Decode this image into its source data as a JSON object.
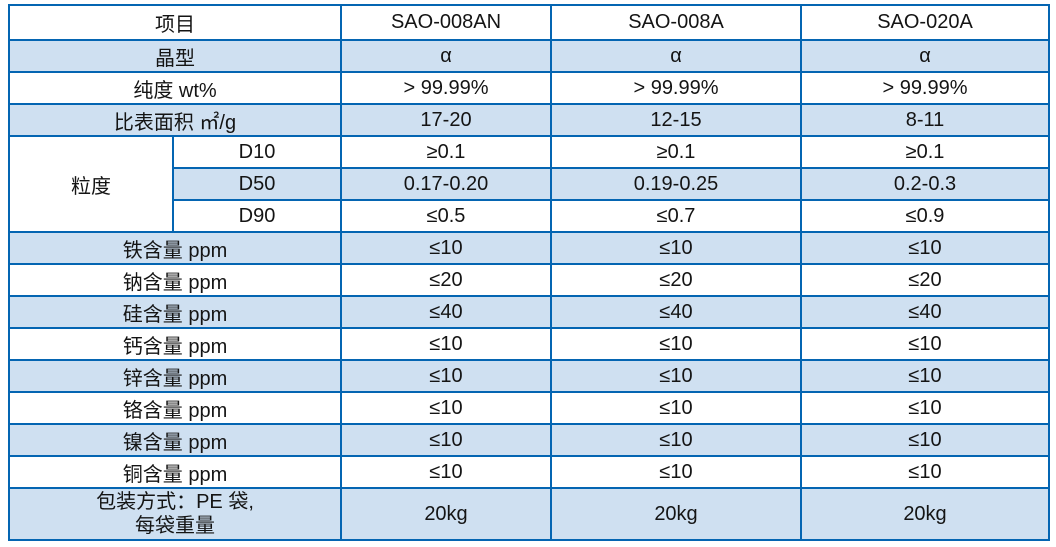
{
  "colors": {
    "border_blue": "#0465b2",
    "row_fill_blue": "#cfe0f1",
    "text": "#141414",
    "background": "#ffffff"
  },
  "table": {
    "header": {
      "item_label": "项目",
      "products": [
        "SAO-008AN",
        "SAO-008A",
        "SAO-020A"
      ]
    },
    "rows": [
      {
        "label": "晶型",
        "values": [
          "α",
          "α",
          "α"
        ]
      },
      {
        "label": "纯度 wt%",
        "values": [
          "> 99.99%",
          "> 99.99%",
          "> 99.99%"
        ]
      },
      {
        "label": "比表面积 ㎡/g",
        "values": [
          "17-20",
          "12-15",
          "8-11"
        ]
      },
      {
        "label": "D10",
        "values": [
          "≥0.1",
          "≥0.1",
          "≥0.1"
        ]
      },
      {
        "label": "D50",
        "values": [
          "0.17-0.20",
          "0.19-0.25",
          "0.2-0.3"
        ]
      },
      {
        "label": "D90",
        "values": [
          "≤0.5",
          "≤0.7",
          "≤0.9"
        ]
      },
      {
        "label": "铁含量 ppm",
        "values": [
          "≤10",
          "≤10",
          "≤10"
        ]
      },
      {
        "label": "钠含量 ppm",
        "values": [
          "≤20",
          "≤20",
          "≤20"
        ]
      },
      {
        "label": "硅含量 ppm",
        "values": [
          "≤40",
          "≤40",
          "≤40"
        ]
      },
      {
        "label": "钙含量 ppm",
        "values": [
          "≤10",
          "≤10",
          "≤10"
        ]
      },
      {
        "label": "锌含量 ppm",
        "values": [
          "≤10",
          "≤10",
          "≤10"
        ]
      },
      {
        "label": "铬含量 ppm",
        "values": [
          "≤10",
          "≤10",
          "≤10"
        ]
      },
      {
        "label": "镍含量 ppm",
        "values": [
          "≤10",
          "≤10",
          "≤10"
        ]
      },
      {
        "label": "铜含量 ppm",
        "values": [
          "≤10",
          "≤10",
          "≤10"
        ]
      }
    ],
    "particle_group_label": "粒度",
    "packaging": {
      "label_line1": "包装方式：PE 袋,",
      "label_line2": "每袋重量",
      "values": [
        "20kg",
        "20kg",
        "20kg"
      ]
    }
  }
}
